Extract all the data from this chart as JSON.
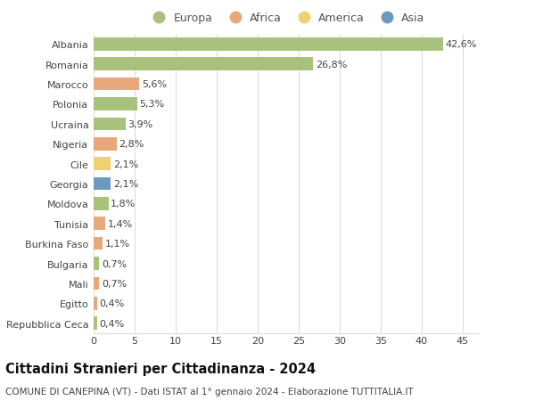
{
  "countries": [
    "Albania",
    "Romania",
    "Marocco",
    "Polonia",
    "Ucraina",
    "Nigeria",
    "Cile",
    "Georgia",
    "Moldova",
    "Tunisia",
    "Burkina Faso",
    "Bulgaria",
    "Mali",
    "Egitto",
    "Repubblica Ceca"
  ],
  "values": [
    42.6,
    26.8,
    5.6,
    5.3,
    3.9,
    2.8,
    2.1,
    2.1,
    1.8,
    1.4,
    1.1,
    0.7,
    0.7,
    0.4,
    0.4
  ],
  "labels": [
    "42,6%",
    "26,8%",
    "5,6%",
    "5,3%",
    "3,9%",
    "2,8%",
    "2,1%",
    "2,1%",
    "1,8%",
    "1,4%",
    "1,1%",
    "0,7%",
    "0,7%",
    "0,4%",
    "0,4%"
  ],
  "continents": [
    "Europa",
    "Europa",
    "Africa",
    "Europa",
    "Europa",
    "Africa",
    "America",
    "Asia",
    "Europa",
    "Africa",
    "Africa",
    "Europa",
    "Africa",
    "Africa",
    "Europa"
  ],
  "continent_colors": {
    "Europa": "#a8c17c",
    "Africa": "#e8a87c",
    "America": "#f0d070",
    "Asia": "#6b9abf"
  },
  "legend_order": [
    "Europa",
    "Africa",
    "America",
    "Asia"
  ],
  "title": "Cittadini Stranieri per Cittadinanza - 2024",
  "subtitle": "COMUNE DI CANEPINA (VT) - Dati ISTAT al 1° gennaio 2024 - Elaborazione TUTTITALIA.IT",
  "xlim": [
    0,
    47
  ],
  "xticks": [
    0,
    5,
    10,
    15,
    20,
    25,
    30,
    35,
    40,
    45
  ],
  "background_color": "#ffffff",
  "grid_color": "#dddddd",
  "bar_height": 0.65,
  "label_fontsize": 8,
  "tick_fontsize": 8,
  "title_fontsize": 10.5,
  "subtitle_fontsize": 7.5,
  "legend_fontsize": 9
}
